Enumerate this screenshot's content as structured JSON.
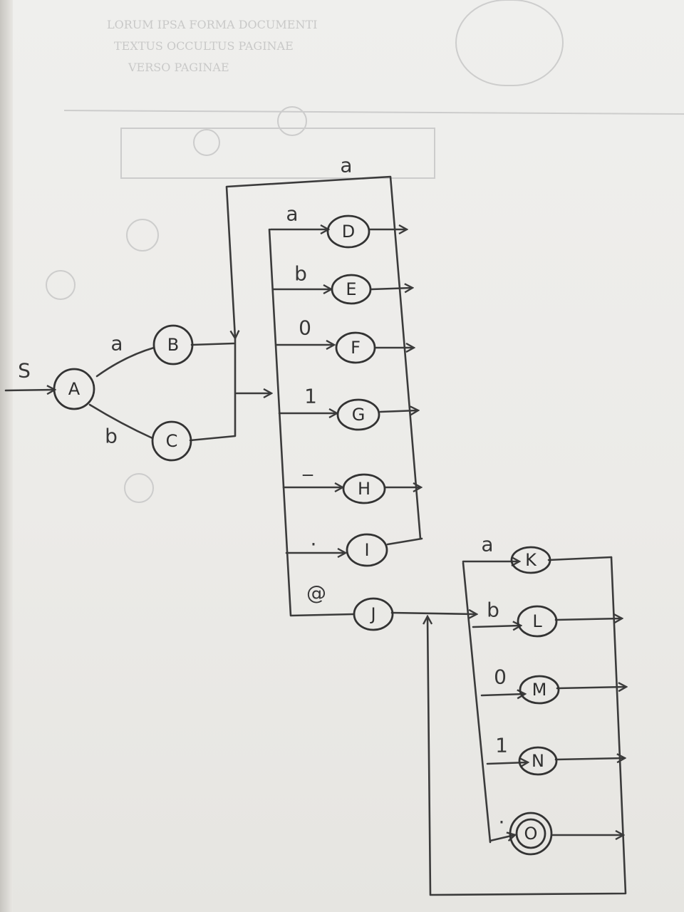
{
  "start_label": "S",
  "nodes": {
    "A": "A",
    "B": "B",
    "C": "C",
    "D": "D",
    "E": "E",
    "F": "F",
    "G": "G",
    "H": "H",
    "I": "I",
    "J": "J",
    "K": "K",
    "L": "L",
    "M": "M",
    "N": "N",
    "O": "O"
  },
  "edge_labels": {
    "ab": "a",
    "ac": "b",
    "loop1": "a",
    "d": "a",
    "e": "b",
    "f": "0",
    "g": "1",
    "h": "_",
    "i": ".",
    "j": "@",
    "k": "a",
    "l": "b",
    "m": "0",
    "n": "1",
    "o": "."
  },
  "accepting_state": "O"
}
